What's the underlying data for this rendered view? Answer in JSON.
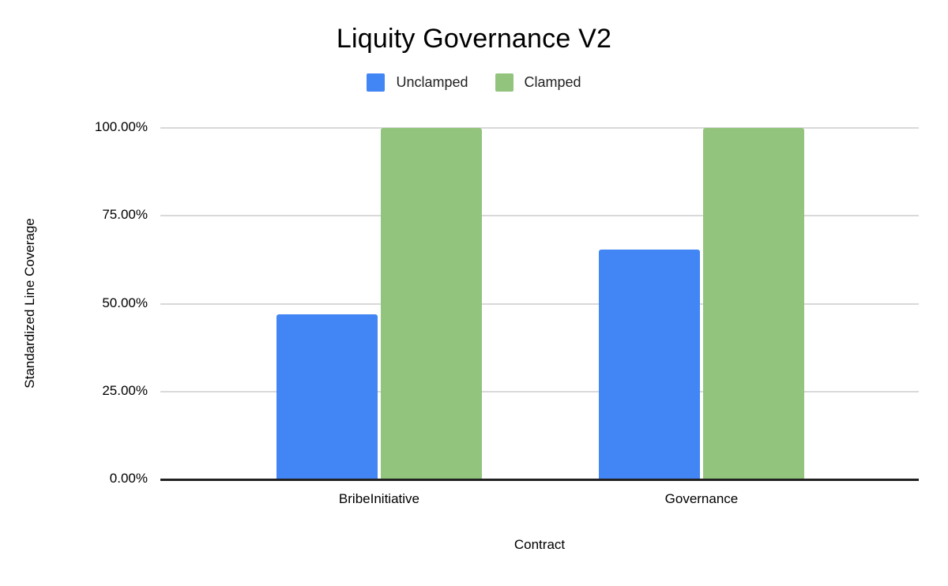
{
  "chart_data": {
    "type": "bar",
    "title": "Liquity Governance V2",
    "xlabel": "Contract",
    "ylabel": "Standardized Line Coverage",
    "categories": [
      "BribeInitiative",
      "Governance"
    ],
    "series": [
      {
        "name": "Unclamped",
        "color": "#4285F4",
        "values": [
          47.0,
          65.4
        ]
      },
      {
        "name": "Clamped",
        "color": "#93C47D",
        "values": [
          100.0,
          100.0
        ]
      }
    ],
    "ylim": [
      0,
      100
    ],
    "yticks": [
      {
        "value": 0,
        "label": "0.00%"
      },
      {
        "value": 25,
        "label": "25.00%"
      },
      {
        "value": 50,
        "label": "50.00%"
      },
      {
        "value": 75,
        "label": "75.00%"
      },
      {
        "value": 100,
        "label": "100.00%"
      }
    ],
    "grid": true,
    "legend_position": "top",
    "colors": {
      "background": "#FFFFFF",
      "gridline": "#D9D9D9",
      "axis_line": "#212121",
      "text": "#000000"
    }
  }
}
